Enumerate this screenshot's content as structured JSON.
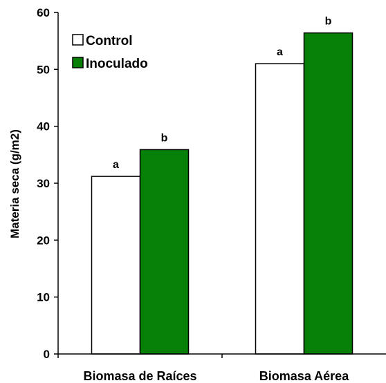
{
  "chart_data": {
    "type": "bar",
    "title": "",
    "xlabel": "",
    "ylabel": "Materia seca (g/m2)",
    "ylim": [
      0,
      60
    ],
    "yticks": [
      0,
      10,
      20,
      30,
      40,
      50,
      60
    ],
    "categories": [
      "Biomasa de Raíces",
      "Biomasa Aérea"
    ],
    "series": [
      {
        "name": "Control",
        "color": "#ffffff",
        "values": [
          31.2,
          51.0
        ],
        "labels": [
          "a",
          "a"
        ]
      },
      {
        "name": "Inoculado",
        "color": "#078007",
        "values": [
          35.9,
          56.4
        ],
        "labels": [
          "b",
          "b"
        ]
      }
    ],
    "legend_position": "top-left",
    "grid": false
  }
}
